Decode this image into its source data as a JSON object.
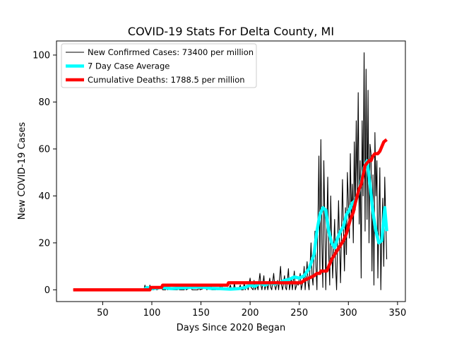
{
  "chart_data": {
    "type": "line",
    "title": "COVID-19 Stats For Delta County, MI",
    "xlabel": "Days Since 2020 Began",
    "ylabel": "New COVID-19 Cases",
    "xlim": [
      3,
      358
    ],
    "ylim": [
      -5,
      106
    ],
    "xticks": [
      50,
      100,
      150,
      200,
      250,
      300,
      350
    ],
    "yticks": [
      0,
      20,
      40,
      60,
      80,
      100
    ],
    "grid": false,
    "legend_position": "top-left",
    "series": [
      {
        "name": "New Confirmed Cases: 73400 per million",
        "color": "#000000",
        "style": "thin",
        "points": [
          [
            20,
            0
          ],
          [
            92,
            0
          ],
          [
            93,
            2
          ],
          [
            94,
            0
          ],
          [
            96,
            1
          ],
          [
            97,
            0
          ],
          [
            98,
            2
          ],
          [
            99,
            0
          ],
          [
            102,
            0
          ],
          [
            104,
            1
          ],
          [
            105,
            0
          ],
          [
            110,
            1
          ],
          [
            111,
            0
          ],
          [
            114,
            0
          ],
          [
            115,
            2
          ],
          [
            116,
            0
          ],
          [
            120,
            1
          ],
          [
            121,
            0
          ],
          [
            126,
            0
          ],
          [
            127,
            1
          ],
          [
            128,
            0
          ],
          [
            133,
            0
          ],
          [
            134,
            2
          ],
          [
            135,
            0
          ],
          [
            140,
            1
          ],
          [
            141,
            0
          ],
          [
            147,
            0
          ],
          [
            148,
            2
          ],
          [
            149,
            0
          ],
          [
            155,
            1
          ],
          [
            156,
            0
          ],
          [
            160,
            2
          ],
          [
            161,
            0
          ],
          [
            165,
            0
          ],
          [
            166,
            1
          ],
          [
            167,
            0
          ],
          [
            171,
            2
          ],
          [
            172,
            0
          ],
          [
            176,
            0
          ],
          [
            177,
            1
          ],
          [
            178,
            0
          ],
          [
            180,
            2
          ],
          [
            181,
            0
          ],
          [
            183,
            0
          ],
          [
            184,
            3
          ],
          [
            185,
            0
          ],
          [
            187,
            1
          ],
          [
            188,
            0
          ],
          [
            190,
            2
          ],
          [
            191,
            0
          ],
          [
            193,
            0
          ],
          [
            194,
            3
          ],
          [
            195,
            0
          ],
          [
            197,
            2
          ],
          [
            198,
            0
          ],
          [
            200,
            5
          ],
          [
            201,
            1
          ],
          [
            203,
            0
          ],
          [
            204,
            4
          ],
          [
            205,
            0
          ],
          [
            207,
            2
          ],
          [
            208,
            0
          ],
          [
            210,
            7
          ],
          [
            211,
            2
          ],
          [
            212,
            0
          ],
          [
            214,
            6
          ],
          [
            215,
            0
          ],
          [
            217,
            3
          ],
          [
            218,
            0
          ],
          [
            220,
            5
          ],
          [
            221,
            1
          ],
          [
            222,
            0
          ],
          [
            224,
            7
          ],
          [
            225,
            2
          ],
          [
            226,
            0
          ],
          [
            228,
            4
          ],
          [
            229,
            0
          ],
          [
            231,
            10
          ],
          [
            232,
            2
          ],
          [
            233,
            0
          ],
          [
            235,
            6
          ],
          [
            236,
            1
          ],
          [
            237,
            0
          ],
          [
            239,
            9
          ],
          [
            240,
            0
          ],
          [
            242,
            5
          ],
          [
            243,
            0
          ],
          [
            245,
            8
          ],
          [
            246,
            0
          ],
          [
            248,
            3
          ],
          [
            249,
            2
          ],
          [
            251,
            7
          ],
          [
            252,
            0
          ],
          [
            254,
            4
          ],
          [
            255,
            10
          ],
          [
            256,
            0
          ],
          [
            258,
            12
          ],
          [
            259,
            3
          ],
          [
            260,
            0
          ],
          [
            262,
            20
          ],
          [
            263,
            6
          ],
          [
            264,
            2
          ],
          [
            266,
            25
          ],
          [
            267,
            10
          ],
          [
            268,
            0
          ],
          [
            270,
            57
          ],
          [
            271,
            8
          ],
          [
            272,
            64
          ],
          [
            273,
            20
          ],
          [
            274,
            1
          ],
          [
            275,
            55
          ],
          [
            276,
            30
          ],
          [
            277,
            0
          ],
          [
            279,
            48
          ],
          [
            280,
            15
          ],
          [
            281,
            2
          ],
          [
            282,
            40
          ],
          [
            283,
            20
          ],
          [
            284,
            5
          ],
          [
            286,
            30
          ],
          [
            287,
            10
          ],
          [
            288,
            0
          ],
          [
            290,
            38
          ],
          [
            291,
            20
          ],
          [
            292,
            3
          ],
          [
            294,
            47
          ],
          [
            295,
            25
          ],
          [
            296,
            8
          ],
          [
            297,
            35
          ],
          [
            298,
            15
          ],
          [
            299,
            50
          ],
          [
            300,
            38
          ],
          [
            301,
            22
          ],
          [
            302,
            58
          ],
          [
            303,
            30
          ],
          [
            304,
            45
          ],
          [
            305,
            20
          ],
          [
            306,
            63
          ],
          [
            307,
            34
          ],
          [
            308,
            72
          ],
          [
            309,
            40
          ],
          [
            310,
            84
          ],
          [
            311,
            28
          ],
          [
            312,
            55
          ],
          [
            313,
            5
          ],
          [
            314,
            72
          ],
          [
            315,
            40
          ],
          [
            316,
            101
          ],
          [
            317,
            25
          ],
          [
            318,
            94
          ],
          [
            319,
            30
          ],
          [
            320,
            85
          ],
          [
            321,
            20
          ],
          [
            322,
            62
          ],
          [
            323,
            58
          ],
          [
            324,
            8
          ],
          [
            325,
            49
          ],
          [
            326,
            2
          ],
          [
            327,
            67
          ],
          [
            328,
            40
          ],
          [
            329,
            55
          ],
          [
            330,
            5
          ],
          [
            331,
            30
          ],
          [
            332,
            52
          ],
          [
            333,
            0
          ],
          [
            334,
            25
          ],
          [
            335,
            39
          ],
          [
            336,
            10
          ],
          [
            337,
            48
          ],
          [
            338,
            30
          ],
          [
            339,
            13
          ]
        ]
      },
      {
        "name": "7 Day Case Average",
        "color": "#00ffff",
        "style": "thick",
        "points": [
          [
            92,
            0
          ],
          [
            95,
            1
          ],
          [
            100,
            0.5
          ],
          [
            110,
            1
          ],
          [
            120,
            0.5
          ],
          [
            130,
            0.8
          ],
          [
            140,
            1
          ],
          [
            150,
            1.2
          ],
          [
            160,
            0.6
          ],
          [
            170,
            0.5
          ],
          [
            180,
            0.3
          ],
          [
            188,
            0.5
          ],
          [
            195,
            1
          ],
          [
            200,
            2
          ],
          [
            205,
            1.5
          ],
          [
            210,
            3
          ],
          [
            215,
            2
          ],
          [
            220,
            3
          ],
          [
            225,
            2.5
          ],
          [
            230,
            3
          ],
          [
            235,
            4
          ],
          [
            240,
            4.5
          ],
          [
            245,
            5.5
          ],
          [
            250,
            5
          ],
          [
            255,
            6
          ],
          [
            260,
            9
          ],
          [
            265,
            15
          ],
          [
            268,
            25
          ],
          [
            271,
            32
          ],
          [
            274,
            35
          ],
          [
            277,
            34
          ],
          [
            280,
            25
          ],
          [
            283,
            20
          ],
          [
            286,
            18
          ],
          [
            289,
            22
          ],
          [
            292,
            25
          ],
          [
            295,
            27
          ],
          [
            298,
            32
          ],
          [
            301,
            34
          ],
          [
            304,
            37
          ],
          [
            307,
            38
          ],
          [
            310,
            41
          ],
          [
            313,
            46
          ],
          [
            316,
            52
          ],
          [
            319,
            55
          ],
          [
            322,
            45
          ],
          [
            325,
            33
          ],
          [
            328,
            25
          ],
          [
            331,
            20
          ],
          [
            334,
            21
          ],
          [
            337,
            35
          ],
          [
            339,
            25
          ]
        ]
      },
      {
        "name": "Cumulative Deaths: 1788.5 per million",
        "color": "#ff0000",
        "style": "thick",
        "points": [
          [
            20,
            0
          ],
          [
            98,
            0
          ],
          [
            99,
            1
          ],
          [
            110,
            1
          ],
          [
            111,
            2
          ],
          [
            177,
            2
          ],
          [
            178,
            3
          ],
          [
            252,
            3
          ],
          [
            255,
            4
          ],
          [
            260,
            5
          ],
          [
            265,
            6
          ],
          [
            268,
            7
          ],
          [
            271,
            7
          ],
          [
            272,
            8
          ],
          [
            278,
            8
          ],
          [
            280,
            10
          ],
          [
            283,
            13
          ],
          [
            286,
            15
          ],
          [
            289,
            17
          ],
          [
            292,
            19
          ],
          [
            295,
            21
          ],
          [
            298,
            24
          ],
          [
            300,
            27
          ],
          [
            302,
            30
          ],
          [
            305,
            33
          ],
          [
            307,
            37
          ],
          [
            309,
            40
          ],
          [
            311,
            43
          ],
          [
            313,
            45
          ],
          [
            315,
            49
          ],
          [
            317,
            53
          ],
          [
            319,
            54
          ],
          [
            321,
            55
          ],
          [
            323,
            55
          ],
          [
            325,
            57
          ],
          [
            327,
            58
          ],
          [
            330,
            58
          ],
          [
            332,
            59
          ],
          [
            334,
            61
          ],
          [
            336,
            63
          ],
          [
            339,
            64
          ]
        ]
      }
    ]
  }
}
